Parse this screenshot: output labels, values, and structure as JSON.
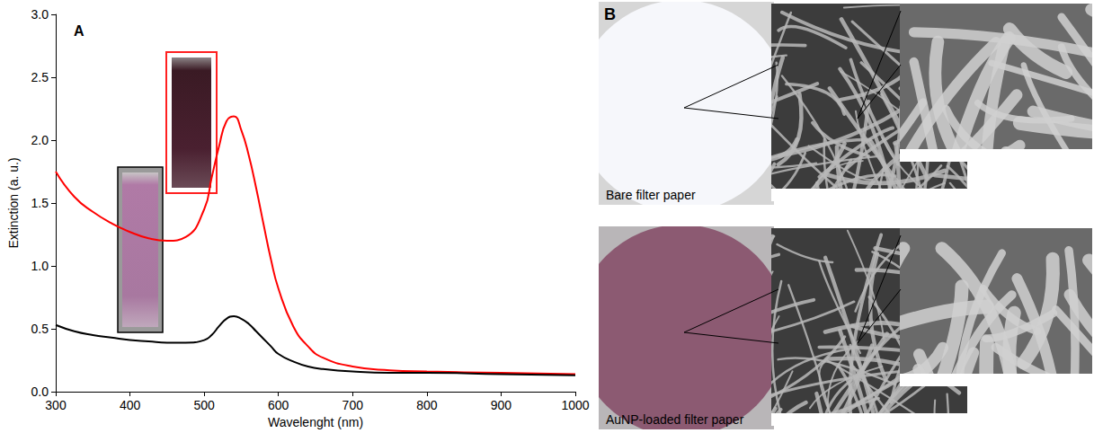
{
  "chart_data": {
    "type": "line",
    "panel_label": "A",
    "x_label": "Wavelenght (nm)",
    "y_label": "Extinction (a. u.)",
    "x": [
      300,
      325,
      350,
      375,
      400,
      425,
      450,
      475,
      500,
      510,
      520,
      530,
      540,
      550,
      560,
      570,
      580,
      590,
      600,
      620,
      640,
      660,
      700,
      750,
      800,
      900,
      1000
    ],
    "series": [
      {
        "color": "#ff0000",
        "values": [
          1.75,
          1.55,
          1.43,
          1.34,
          1.27,
          1.22,
          1.2,
          1.23,
          1.45,
          1.7,
          1.95,
          2.15,
          2.19,
          2.08,
          1.88,
          1.62,
          1.33,
          1.05,
          0.82,
          0.52,
          0.36,
          0.27,
          0.2,
          0.17,
          0.16,
          0.15,
          0.14
        ]
      },
      {
        "color": "#000000",
        "values": [
          0.53,
          0.48,
          0.45,
          0.43,
          0.41,
          0.4,
          0.39,
          0.39,
          0.41,
          0.45,
          0.52,
          0.58,
          0.6,
          0.58,
          0.54,
          0.48,
          0.42,
          0.36,
          0.3,
          0.24,
          0.2,
          0.18,
          0.16,
          0.15,
          0.15,
          0.14,
          0.13
        ]
      }
    ],
    "xlim": [
      300,
      1000
    ],
    "xticks": [
      300,
      400,
      500,
      600,
      700,
      800,
      900,
      1000
    ],
    "ylim": [
      0,
      3
    ],
    "yticks": [
      {
        "value": 0,
        "label": "0.0"
      },
      {
        "value": 0.5,
        "label": "0.5"
      },
      {
        "value": 1,
        "label": "1.0"
      },
      {
        "value": 1.5,
        "label": "1.5"
      },
      {
        "value": 2,
        "label": "2.0"
      },
      {
        "value": 2.5,
        "label": "2.5"
      },
      {
        "value": 3,
        "label": "3.0"
      }
    ],
    "grid": false
  },
  "panel_b": {
    "label": "B",
    "rows": [
      {
        "caption": "Bare filter paper"
      },
      {
        "caption": "AuNP-loaded filter paper"
      }
    ]
  }
}
